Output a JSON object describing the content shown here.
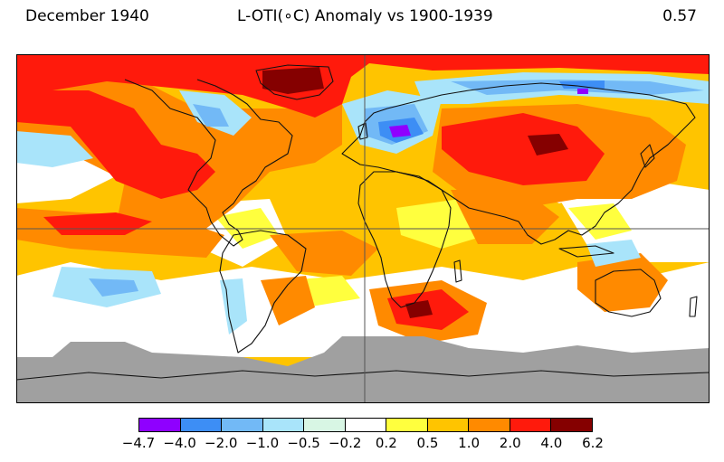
{
  "header": {
    "left": "December 1940",
    "center": "L-OTI(∘C) Anomaly vs 1900-1939",
    "right": "0.57"
  },
  "colorbar": {
    "colors": [
      "#8f00ff",
      "#3d8ef5",
      "#72b9f6",
      "#a9e4fa",
      "#d8f6e4",
      "#ffffff",
      "#ffff3e",
      "#ffc400",
      "#ff8a00",
      "#ff1a0c",
      "#850000"
    ],
    "ticks": [
      "−4.7",
      "−4.0",
      "−2.0",
      "−1.0",
      "−0.5",
      "−0.2",
      "0.2",
      "0.5",
      "1.0",
      "2.0",
      "4.0",
      "6.2"
    ]
  },
  "map": {
    "colors": {
      "ocean_default": "#ffc400",
      "no_data": "#a0a0a0",
      "coastline": "#111111",
      "gridline": "#555555"
    }
  }
}
